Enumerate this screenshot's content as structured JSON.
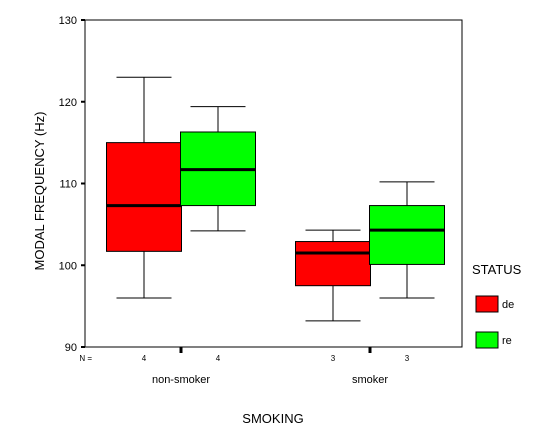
{
  "chart_data": {
    "type": "boxplot",
    "title": "",
    "xlabel": "SMOKING",
    "ylabel": "MODAL FREQUENCY (Hz)",
    "ylim": [
      90,
      130
    ],
    "yticks": [
      "130",
      "120",
      "110",
      "100",
      "90"
    ],
    "y_tick_values": [
      130,
      120,
      110,
      100,
      90
    ],
    "grid": false,
    "legend": {
      "title": "STATUS",
      "position": "right"
    },
    "n_prefix": "N =",
    "categories": [
      "non-smoker",
      "smoker"
    ],
    "series": [
      {
        "name": "de",
        "color": "#ff0000",
        "n": [
          "4",
          "3"
        ],
        "boxes": [
          {
            "min": 96,
            "q1": 101.7,
            "median": 107.3,
            "q3": 115,
            "max": 123
          },
          {
            "min": 93.2,
            "q1": 97.5,
            "median": 101.5,
            "q3": 102.9,
            "max": 104.3
          }
        ]
      },
      {
        "name": "re",
        "color": "#00ff00",
        "n": [
          "4",
          "3"
        ],
        "boxes": [
          {
            "min": 104.2,
            "q1": 107.3,
            "median": 111.7,
            "q3": 116.3,
            "max": 119.4
          },
          {
            "min": 96,
            "q1": 100.1,
            "median": 104.3,
            "q3": 107.3,
            "max": 110.2
          }
        ]
      }
    ]
  }
}
